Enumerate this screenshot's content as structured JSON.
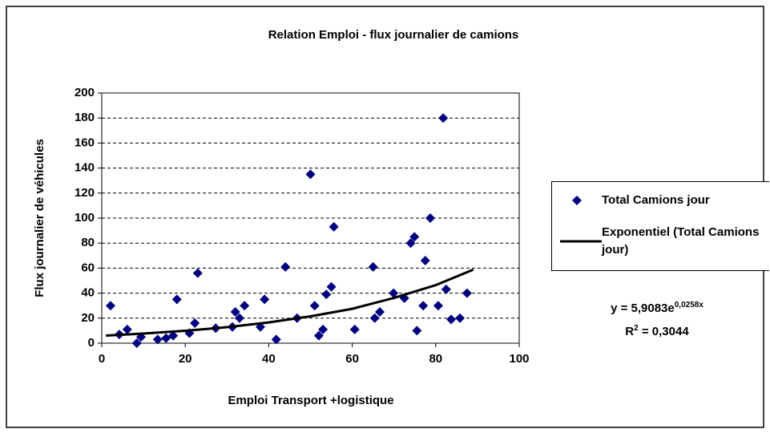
{
  "chart_data": {
    "type": "scatter",
    "title": "Relation Emploi - flux journalier de camions",
    "xlabel": "Emploi Transport +logistique",
    "ylabel": "Flux journalier de véhicules",
    "xlim": [
      0,
      100
    ],
    "xticks": [
      0,
      20,
      40,
      60,
      80,
      100
    ],
    "ylim": [
      0,
      200
    ],
    "yticks": [
      0,
      20,
      40,
      60,
      80,
      100,
      120,
      140,
      160,
      180,
      200
    ],
    "grid": true,
    "legend": "right",
    "series": [
      {
        "name": "Total Camions jour",
        "color": "#000080",
        "marker": "diamond",
        "x": [
          2.1,
          4.2,
          6.1,
          8.4,
          9.4,
          13.4,
          15.4,
          17.1,
          18,
          21,
          22.3,
          23,
          27.3,
          31.3,
          32,
          33,
          34.2,
          38,
          39,
          41.8,
          44,
          46.8,
          50,
          51,
          52,
          53,
          53.8,
          55,
          55.6,
          60.6,
          65,
          65.4,
          66.6,
          69.9,
          72.5,
          74,
          74.9,
          75.5,
          77,
          77.5,
          78.7,
          80.6,
          81.8,
          82.5,
          83.7,
          85.8,
          87.5
        ],
        "values": [
          30,
          7,
          11,
          0,
          5,
          3,
          4,
          6,
          35,
          8,
          16,
          56,
          12,
          13,
          25,
          20,
          30,
          13,
          35,
          3,
          61,
          20,
          135,
          30,
          6,
          11,
          39,
          45,
          93,
          11,
          61,
          20,
          25,
          40,
          36,
          80,
          85,
          10,
          30,
          66,
          100,
          30,
          180,
          43,
          19,
          20,
          40
        ]
      },
      {
        "name": "Exponentiel (Total Camions jour)",
        "color": "#000000",
        "marker": "line",
        "x": [
          1,
          10,
          20,
          30,
          40,
          50,
          60,
          70,
          80,
          89
        ],
        "values": [
          6.1,
          7.7,
          9.9,
          12.8,
          16.6,
          21.5,
          27.5,
          36.2,
          46.4,
          58.8
        ]
      }
    ],
    "equation": {
      "base": "y = 5,9083e",
      "exponent": "0,0258x"
    },
    "r_squared": {
      "prefix": "R",
      "sup": "2",
      "rest": " = 0,3044"
    }
  }
}
